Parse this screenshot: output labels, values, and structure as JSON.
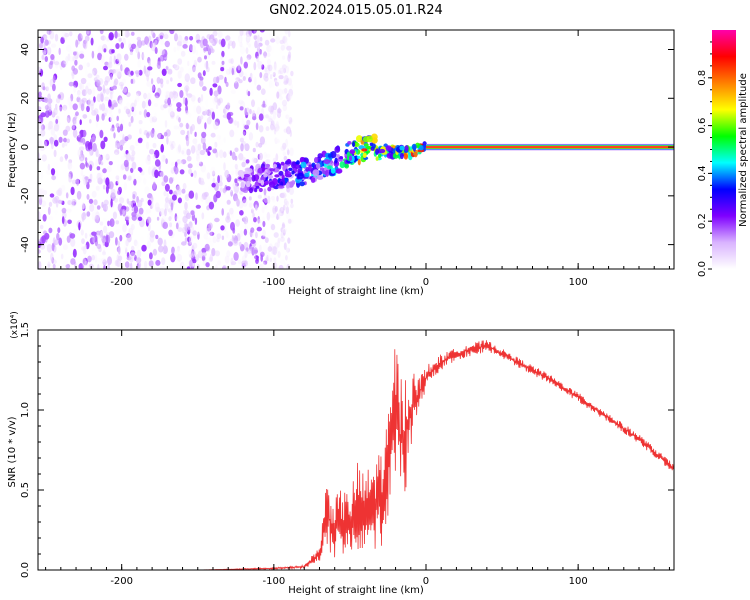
{
  "figure": {
    "title": "GN02.2024.015.05.01.R24"
  },
  "chart_data": [
    {
      "type": "heatmap",
      "title": "GN02.2024.015.05.01.R24",
      "xlabel": "Height of straight line (km)",
      "ylabel": "Frequency (Hz)",
      "xlim": [
        -255,
        163
      ],
      "ylim": [
        -50,
        48
      ],
      "x_ticks": [
        -200,
        -100,
        0,
        100
      ],
      "y_ticks": [
        -40,
        -20,
        0,
        20,
        40
      ],
      "colorbar": {
        "label": "Normalized spectral amplitude",
        "range": [
          0,
          1
        ],
        "ticks": [
          0.0,
          0.2,
          0.4,
          0.6,
          0.8
        ],
        "colormap": [
          "#ffffff",
          "#d9b3ff",
          "#7f00ff",
          "#0000ff",
          "#00ffff",
          "#00ff00",
          "#ffff00",
          "#ff8000",
          "#ff0000",
          "#ff00aa"
        ]
      },
      "regions": [
        {
          "name": "noise",
          "x": [
            -255,
            -100
          ],
          "frequency": [
            -50,
            48
          ],
          "amplitude": [
            0.0,
            0.2
          ]
        },
        {
          "name": "transition",
          "x": [
            -120,
            0
          ],
          "frequency": [
            -16,
            8
          ],
          "amplitude": [
            0.1,
            0.8
          ]
        },
        {
          "name": "steady_line",
          "x": [
            0,
            163
          ],
          "frequency": 0,
          "amplitude": 0.95
        }
      ],
      "ridge_track": {
        "x": [
          -120,
          -100,
          -80,
          -60,
          -50,
          -40,
          -30,
          -20,
          -10,
          0,
          50,
          100,
          163
        ],
        "frequency": [
          -14,
          -12,
          -10,
          -6,
          -3,
          0,
          -1,
          -2,
          -2,
          0,
          0,
          0,
          0
        ],
        "amplitude": [
          0.2,
          0.3,
          0.4,
          0.45,
          0.5,
          0.85,
          0.6,
          0.7,
          0.8,
          0.9,
          0.95,
          0.95,
          0.95
        ]
      }
    },
    {
      "type": "line",
      "xlabel": "Height of straight line (km)",
      "ylabel": "SNR (10 * v/v)",
      "y_multiplier": "(x10⁴)",
      "xlim": [
        -255,
        163
      ],
      "ylim": [
        0,
        1.5
      ],
      "x_ticks": [
        -200,
        -100,
        0,
        100
      ],
      "y_ticks": [
        0.0,
        0.5,
        1.0,
        1.5
      ],
      "color": "#ee3333",
      "series": [
        {
          "x": [
            -255,
            -200,
            -150,
            -100,
            -80,
            -70,
            -65,
            -60,
            -55,
            -50,
            -45,
            -40,
            -35,
            -30,
            -25,
            -22,
            -20,
            -17,
            -15,
            -12,
            -10,
            -5,
            0,
            5,
            10,
            20,
            30,
            40,
            45,
            60,
            80,
            100,
            120,
            140,
            163
          ],
          "values": [
            0.0,
            0.0,
            0.0,
            0.01,
            0.02,
            0.1,
            0.35,
            0.25,
            0.3,
            0.28,
            0.4,
            0.35,
            0.4,
            0.45,
            0.6,
            0.85,
            1.05,
            0.8,
            0.85,
            0.9,
            0.98,
            1.1,
            1.2,
            1.25,
            1.3,
            1.35,
            1.38,
            1.4,
            1.38,
            1.3,
            1.2,
            1.08,
            0.95,
            0.82,
            0.63
          ],
          "noise_amplitude": [
            0.0,
            0.0,
            0.0,
            0.005,
            0.01,
            0.05,
            0.25,
            0.2,
            0.22,
            0.2,
            0.28,
            0.25,
            0.3,
            0.32,
            0.35,
            0.4,
            0.45,
            0.4,
            0.4,
            0.35,
            0.3,
            0.1,
            0.08,
            0.06,
            0.05,
            0.04,
            0.04,
            0.04,
            0.03,
            0.03,
            0.03,
            0.03,
            0.03,
            0.03,
            0.03
          ]
        }
      ]
    }
  ]
}
